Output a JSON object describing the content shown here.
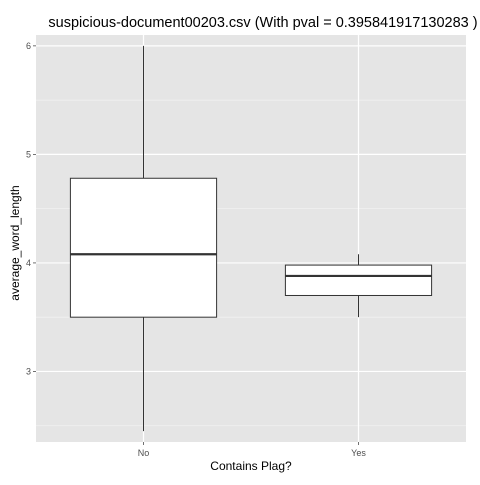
{
  "chart_data": {
    "type": "box",
    "title": "suspicious-document00203.csv (With pval = 0.395841917130283 )",
    "xlabel": "Contains Plag?",
    "ylabel": "average_word_length",
    "categories": [
      "No",
      "Yes"
    ],
    "y_ticks": [
      3,
      4,
      5,
      6
    ],
    "ylim": [
      2.35,
      6.1
    ],
    "grid": true,
    "series": [
      {
        "category": "No",
        "whisker_low": 2.45,
        "q1": 3.5,
        "median": 4.08,
        "q3": 4.78,
        "whisker_high": 6.0
      },
      {
        "category": "Yes",
        "whisker_low": 3.5,
        "q1": 3.7,
        "median": 3.88,
        "q3": 3.98,
        "whisker_high": 4.08
      }
    ],
    "colors": {
      "panel": "#e5e5e5",
      "grid_major": "#ffffff",
      "grid_minor": "#f2f2f2",
      "box_fill": "#ffffff",
      "box_stroke": "#333333",
      "tick_text": "#4d4d4d",
      "text": "#000000"
    }
  }
}
